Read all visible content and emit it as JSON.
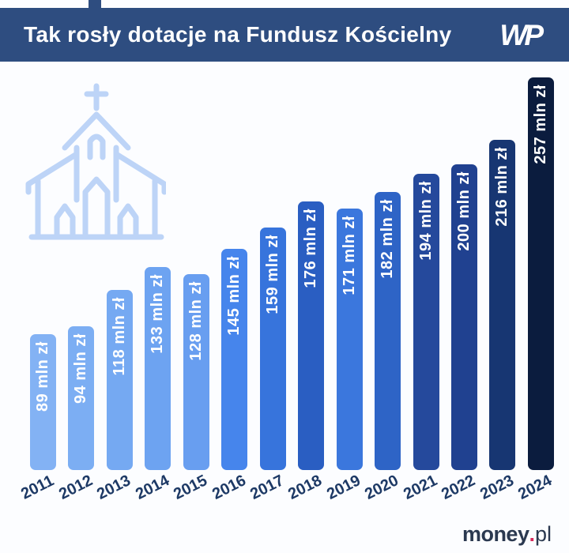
{
  "header": {
    "title": "Tak rosły dotacje na Fundusz Kościelny",
    "logo_text": "WP"
  },
  "chart_data": {
    "type": "bar",
    "title": "Tak rosły dotacje na Fundusz Kościelny",
    "categories": [
      "2011",
      "2012",
      "2013",
      "2014",
      "2015",
      "2016",
      "2017",
      "2018",
      "2019",
      "2020",
      "2021",
      "2022",
      "2023",
      "2024"
    ],
    "values": [
      89,
      94,
      118,
      133,
      128,
      145,
      159,
      176,
      171,
      182,
      194,
      200,
      216,
      257
    ],
    "labels": [
      "89 mln zł",
      "94 mln zł",
      "118 mln zł",
      "133 mln zł",
      "128 mln zł",
      "145 mln zł",
      "159 mln zł",
      "176 mln zł",
      "171 mln zł",
      "182 mln zł",
      "194 mln zł",
      "200 mln zł",
      "216 mln zł",
      "257 mln zł"
    ],
    "unit": "mln zł",
    "xlabel": "",
    "ylabel": "",
    "ylim": [
      0,
      257
    ],
    "grid": false,
    "legend": false,
    "bar_colors": [
      "#83b2f4",
      "#7caef3",
      "#75a9f2",
      "#6da3f1",
      "#689ef0",
      "#4685ec",
      "#3774dc",
      "#2a5ec2",
      "#3b77dd",
      "#2e64c6",
      "#25499c",
      "#204190",
      "#173672",
      "#0b1c3e"
    ],
    "bar_label_color": "#ffffff"
  },
  "footer": {
    "brand_bold": "money",
    "brand_dot": ".",
    "brand_suffix": "pl"
  },
  "icons": {
    "church": "church-outline-icon",
    "wp": "wp-brand-logo"
  },
  "palette": {
    "header_bg": "#2e4d80",
    "title_color": "#ffffff",
    "year_label_color": "#1d3965",
    "church_stroke": "#bdd4f7",
    "brand_text_color": "#2b3950",
    "brand_dot_color": "#d62a5c",
    "background": "#fcfdff"
  }
}
